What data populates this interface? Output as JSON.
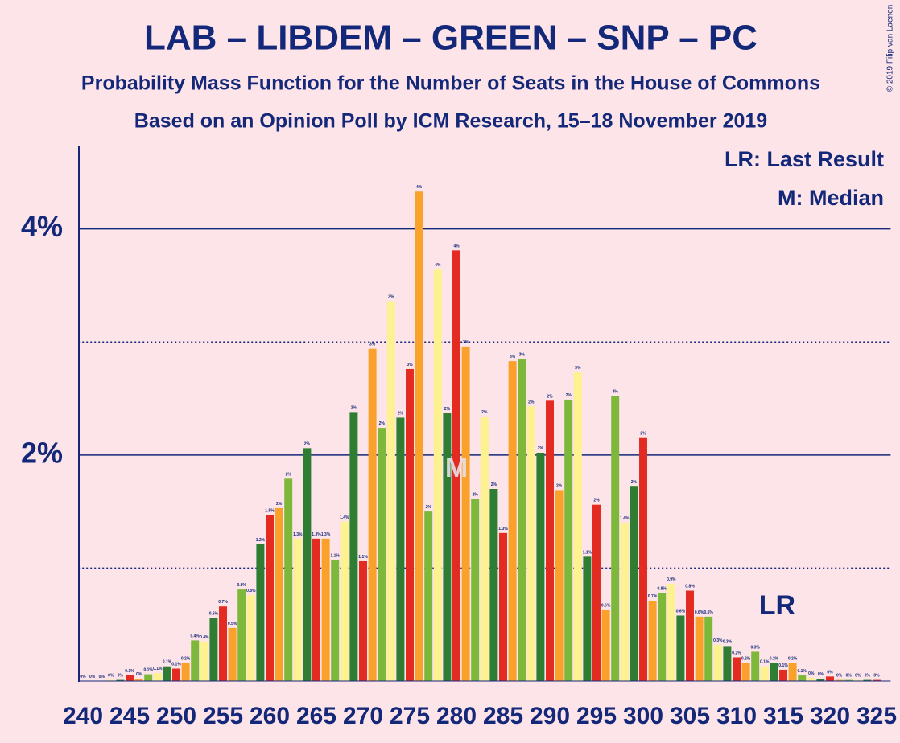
{
  "chart_data": {
    "type": "bar",
    "title": "LAB – LIBDEM – GREEN – SNP – PC",
    "subtitle": "Probability Mass Function for the Number of Seats in the House of Commons",
    "subtitle2": "Based on an Opinion Poll by ICM Research, 15–18 November 2019",
    "copyright": "© 2019 Filip van Laenen",
    "legend_notes": [
      "LR: Last Result",
      "M: Median"
    ],
    "last_result": {
      "x": 314,
      "label": "LR"
    },
    "median": {
      "x": 280,
      "label": "M"
    },
    "colors": [
      "#e32b22",
      "#f9a12b",
      "#7db83a",
      "#fdf28f",
      "#2e7d32"
    ],
    "x": [
      240,
      241,
      242,
      243,
      244,
      245,
      246,
      247,
      248,
      249,
      250,
      251,
      252,
      253,
      254,
      255,
      256,
      257,
      258,
      259,
      260,
      261,
      262,
      263,
      264,
      265,
      266,
      267,
      268,
      269,
      270,
      271,
      272,
      273,
      274,
      275,
      276,
      277,
      278,
      279,
      280,
      281,
      282,
      283,
      284,
      285,
      286,
      287,
      288,
      289,
      290,
      291,
      292,
      293,
      294,
      295,
      296,
      297,
      298,
      299,
      300,
      301,
      302,
      303,
      304,
      305,
      306,
      307,
      308,
      309,
      310,
      311,
      312,
      313,
      314,
      315,
      316,
      317,
      318,
      319,
      320,
      321,
      322,
      323,
      324,
      325
    ],
    "values": [
      0,
      0,
      0,
      0.01,
      0.01,
      0.05,
      0.02,
      0.06,
      0.07,
      0.13,
      0.11,
      0.16,
      0.36,
      0.35,
      0.56,
      0.66,
      0.47,
      0.81,
      0.76,
      1.21,
      1.47,
      1.53,
      1.79,
      1.26,
      2.06,
      1.26,
      1.26,
      1.07,
      1.41,
      2.38,
      1.06,
      2.94,
      2.24,
      3.36,
      2.33,
      2.76,
      4.33,
      1.5,
      3.64,
      2.37,
      3.81,
      2.96,
      1.61,
      2.34,
      1.7,
      1.31,
      2.83,
      2.85,
      2.43,
      2.02,
      2.48,
      1.69,
      2.49,
      2.73,
      1.1,
      1.56,
      0.63,
      2.52,
      1.4,
      1.72,
      2.15,
      0.71,
      0.78,
      0.86,
      0.58,
      0.8,
      0.57,
      0.57,
      0.32,
      0.31,
      0.21,
      0.16,
      0.26,
      0.13,
      0.16,
      0.1,
      0.16,
      0.05,
      0.03,
      0.02,
      0.04,
      0.01,
      0.01,
      0.01,
      0.01,
      0.01
    ],
    "value_labels": [
      "0%",
      "0%",
      "0%",
      "0%",
      "0%",
      "0.1%",
      "0%",
      "0.1%",
      "0.1%",
      "0.1%",
      "0.1%",
      "0.2%",
      "0.4%",
      "0.4%",
      "0.6%",
      "0.7%",
      "0.5%",
      "0.8%",
      "0.8%",
      "1.2%",
      "1.5%",
      "2%",
      "2%",
      "1.3%",
      "2%",
      "1.3%",
      "1.3%",
      "1.1%",
      "1.4%",
      "2%",
      "1.1%",
      "3%",
      "2%",
      "3%",
      "2%",
      "3%",
      "4%",
      "2%",
      "4%",
      "2%",
      "4%",
      "3%",
      "2%",
      "2%",
      "2%",
      "1.3%",
      "3%",
      "3%",
      "2%",
      "2%",
      "2%",
      "2%",
      "2%",
      "3%",
      "1.1%",
      "2%",
      "0.6%",
      "3%",
      "1.4%",
      "2%",
      "2%",
      "0.7%",
      "0.8%",
      "0.9%",
      "0.6%",
      "0.8%",
      "0.6%",
      "0.6%",
      "0.3%",
      "0.3%",
      "0.2%",
      "0.2%",
      "0.3%",
      "0.1%",
      "0.2%",
      "0.1%",
      "0.2%",
      "0.1%",
      "0%",
      "0%",
      "0%",
      "0%",
      "0%",
      "0%",
      "0%",
      "0%"
    ],
    "xlim": [
      239.5,
      326.5
    ],
    "xticks": [
      240,
      245,
      250,
      255,
      260,
      265,
      270,
      275,
      280,
      285,
      290,
      295,
      300,
      305,
      310,
      315,
      320,
      325
    ],
    "ylim": [
      0,
      4.73
    ],
    "yticks": [
      {
        "value": 2,
        "label": "2%"
      },
      {
        "value": 4,
        "label": "4%"
      }
    ],
    "minor_grid": [
      1,
      3
    ]
  }
}
